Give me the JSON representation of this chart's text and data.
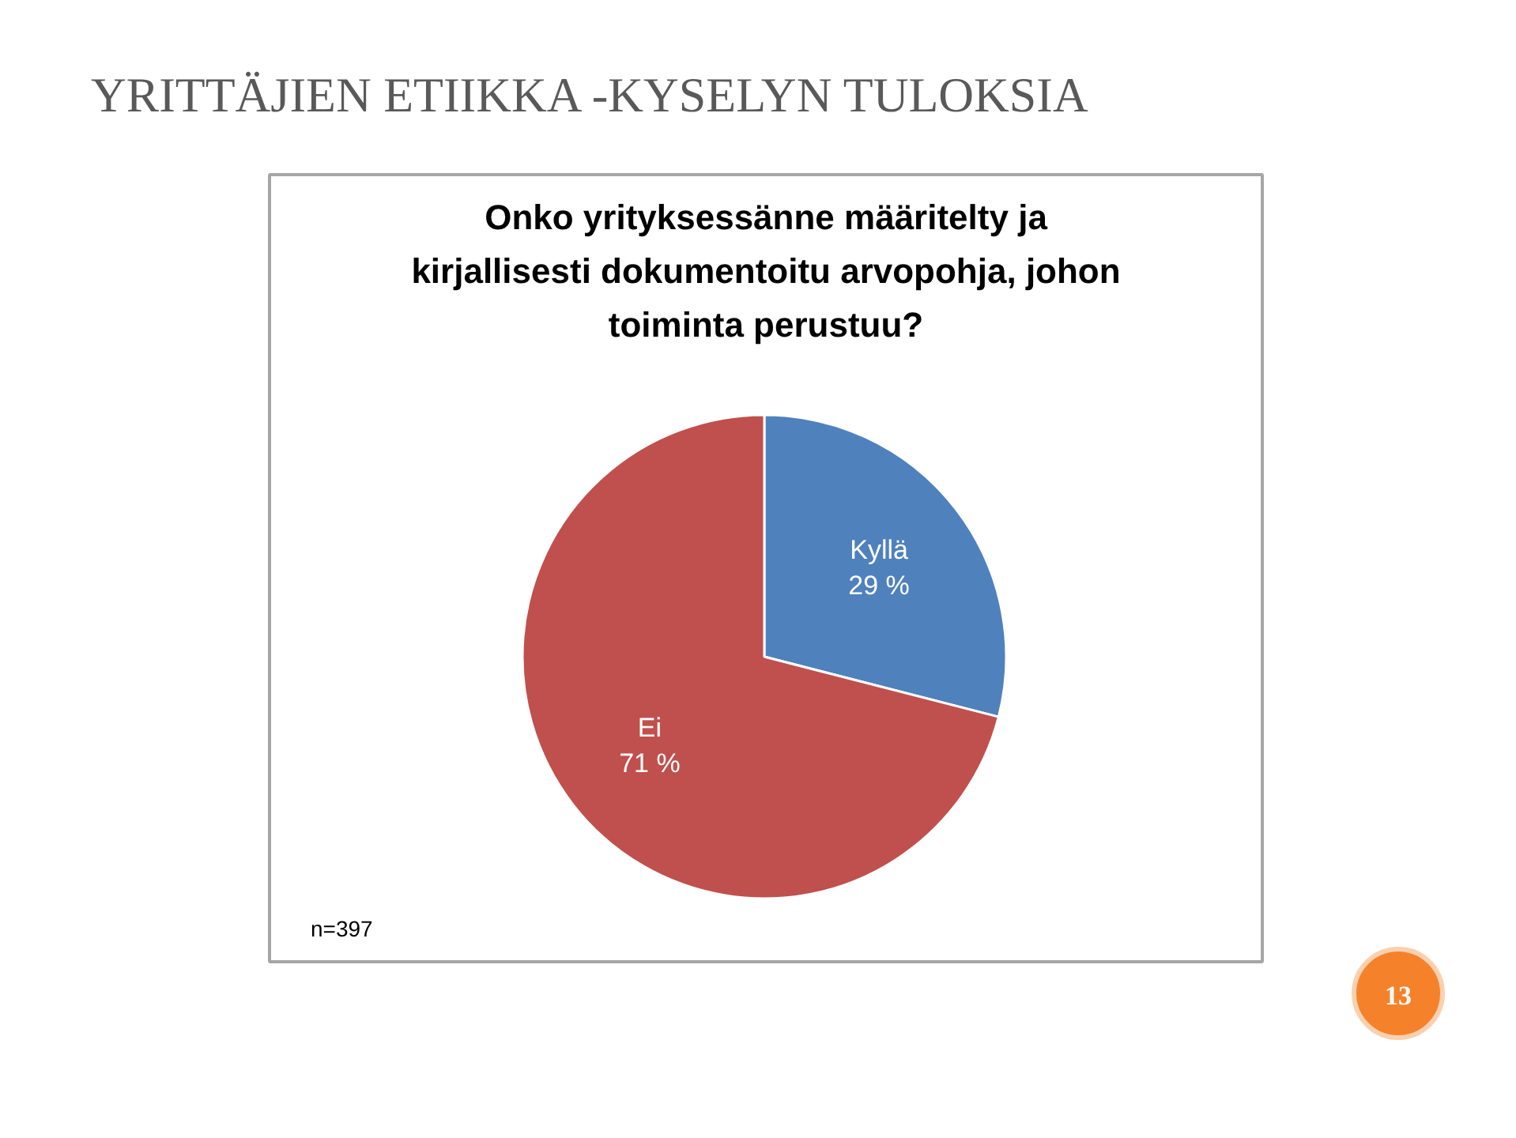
{
  "chart_data": {
    "type": "pie",
    "title": "YRITTÄJIEN ETIIKKA -KYSELYN TULOKSIA",
    "subtitle": "Onko yrityksessänne määritelty ja\nkirjallisesti dokumentoitu arvopohja, johon\ntoiminta perustuu?",
    "categories": [
      "Kyllä",
      "Ei"
    ],
    "values": [
      29,
      71
    ],
    "colors": [
      "#4f81bd",
      "#c0504d"
    ],
    "value_labels": [
      "29 %",
      "71 %"
    ],
    "annotations": [
      "n=397",
      "13"
    ]
  }
}
